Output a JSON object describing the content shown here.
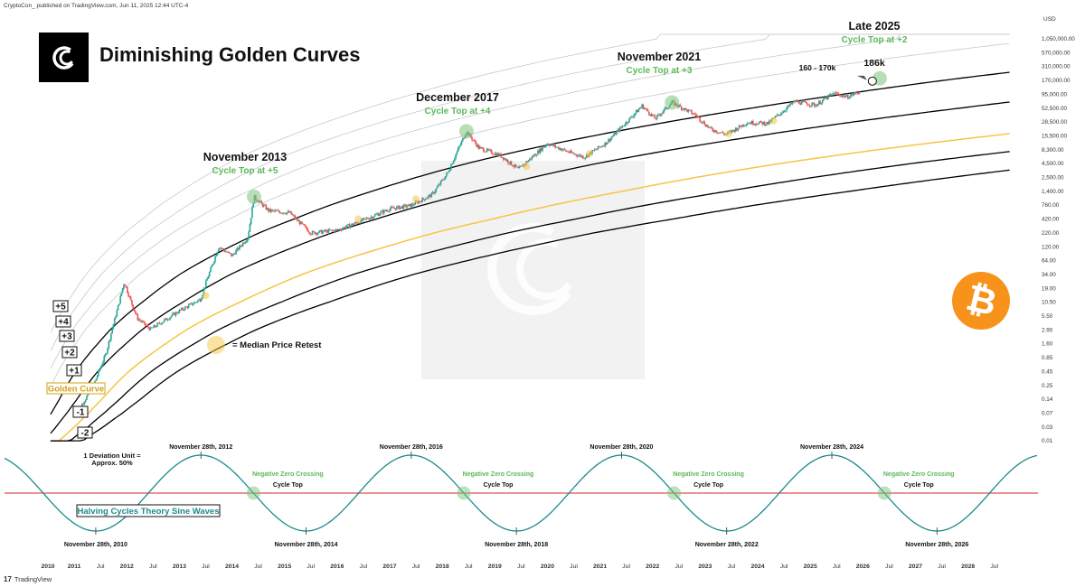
{
  "header": {
    "publisher_line": "CryptoCon_ published on TradingView.com, Jun 11, 2025 12:44 UTC-4",
    "title": "Diminishing Golden Curves",
    "currency": "USD",
    "brand": "TradingView"
  },
  "chart_data": {
    "type": "line",
    "y_scale": "log",
    "price_ticks": [
      "1,050,000.00",
      "570,000.00",
      "310,000.00",
      "170,000.00",
      "95,000.00",
      "52,500.00",
      "28,500.00",
      "15,500.00",
      "8,300.00",
      "4,500.00",
      "2,500.00",
      "1,400.00",
      "760.00",
      "420.00",
      "220.00",
      "120.00",
      "64.00",
      "34.00",
      "19.00",
      "10.50",
      "5.50",
      "2.90",
      "1.60",
      "0.85",
      "0.45",
      "0.25",
      "0.14",
      "0.07",
      "0.03",
      "0.01"
    ],
    "x_ticks": [
      "2010",
      "2011",
      "Jul",
      "2012",
      "Jul",
      "2013",
      "Jul",
      "2014",
      "Jul",
      "2015",
      "Jul",
      "2016",
      "Jul",
      "2017",
      "Jul",
      "2018",
      "Jul",
      "2019",
      "Jul",
      "2020",
      "Jul",
      "2021",
      "Jul",
      "2022",
      "Jul",
      "2023",
      "Jul",
      "2024",
      "Jul",
      "2025",
      "Jul",
      "2026",
      "Jul",
      "2027",
      "Jul",
      "2028",
      "Jul"
    ],
    "band_labels": [
      "+5",
      "+4",
      "+3",
      "+2",
      "+1",
      "Golden Curve",
      "-1",
      "-2"
    ],
    "cycle_tops": [
      {
        "title": "November 2013",
        "subtitle": "Cycle Top at +5"
      },
      {
        "title": "December 2017",
        "subtitle": "Cycle Top at +4"
      },
      {
        "title": "November 2021",
        "subtitle": "Cycle Top at +3"
      },
      {
        "title": "Late 2025",
        "subtitle": "Cycle Top at +2"
      }
    ],
    "projection": {
      "range_label": "160 - 170k",
      "target_label": "186k"
    },
    "legend": {
      "median_retest": "= Median Price Retest"
    },
    "deviation_note": [
      "1 Deviation Unit =",
      "Approx. 50%"
    ],
    "sine": {
      "label": "Halving Cycles Theory Sine Waves",
      "peaks": [
        "November 28th, 2012",
        "November 28th, 2016",
        "November 28th, 2020",
        "November 28th, 2024"
      ],
      "troughs": [
        "November 28th, 2010",
        "November 28th, 2014",
        "November 28th, 2018",
        "November 28th, 2022",
        "November 28th, 2026"
      ],
      "crossing_label": "Negative Zero Crossing",
      "cycle_top_label": "Cycle Top",
      "crossings_count": 4
    },
    "colors": {
      "golden": "#f5c542",
      "band": "#000000",
      "outer_band": "#c8c8c8",
      "sine": "#1b8a8c",
      "zero_line": "#e05252",
      "highlight": "#7cc47c",
      "up": "#26a69a",
      "down": "#ef5350"
    }
  }
}
